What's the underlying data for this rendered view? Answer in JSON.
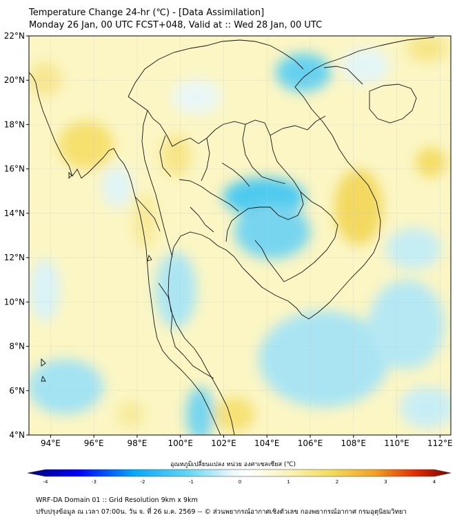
{
  "header": {
    "title_line1": "Temperature Change 24-hr (℃) - [Data Assimilation]",
    "title_line2": "Monday 26 Jan, 00 UTC FCST+048, Valid at :: Wed 28 Jan, 00 UTC"
  },
  "map": {
    "lat_range": [
      4,
      22
    ],
    "lon_range": [
      93,
      112.5
    ],
    "lat_ticks": [
      "4°N",
      "6°N",
      "8°N",
      "10°N",
      "12°N",
      "14°N",
      "16°N",
      "18°N",
      "20°N",
      "22°N"
    ],
    "lon_ticks": [
      "94°E",
      "96°E",
      "98°E",
      "100°E",
      "102°E",
      "104°E",
      "106°E",
      "108°E",
      "110°E",
      "112°E"
    ],
    "background_color": "#fbf6c4",
    "cool_color": "#5fd0f2",
    "warm_color": "#f5dd58"
  },
  "colorbar": {
    "title": "อุณหภูมิเปลี่ยนแปลง หน่วย องศาเซลเซียส (℃)",
    "ticks": [
      "-4",
      "-3",
      "-2",
      "-1",
      "0",
      "1",
      "2",
      "3",
      "4"
    ],
    "colors": [
      "#00007a",
      "#0000ff",
      "#00a8ff",
      "#5fd8f5",
      "#e8f7fb",
      "#ffffff",
      "#fbf2b3",
      "#f3dc55",
      "#f5a020",
      "#e02a00",
      "#7a0000"
    ]
  },
  "footer": {
    "line1": "WRF-DA Domain 01 :: Grid Resolution 9km x 9km",
    "line2": "ปรับปรุงข้อมูล ณ เวลา 07:00น. วัน จ. ที่ 26 ม.ค. 2569 -- © ส่วนพยากรณ์อากาศเชิงตัวเลข กองพยากรณ์อากาศ กรมอุตุนิยมวิทยา"
  }
}
